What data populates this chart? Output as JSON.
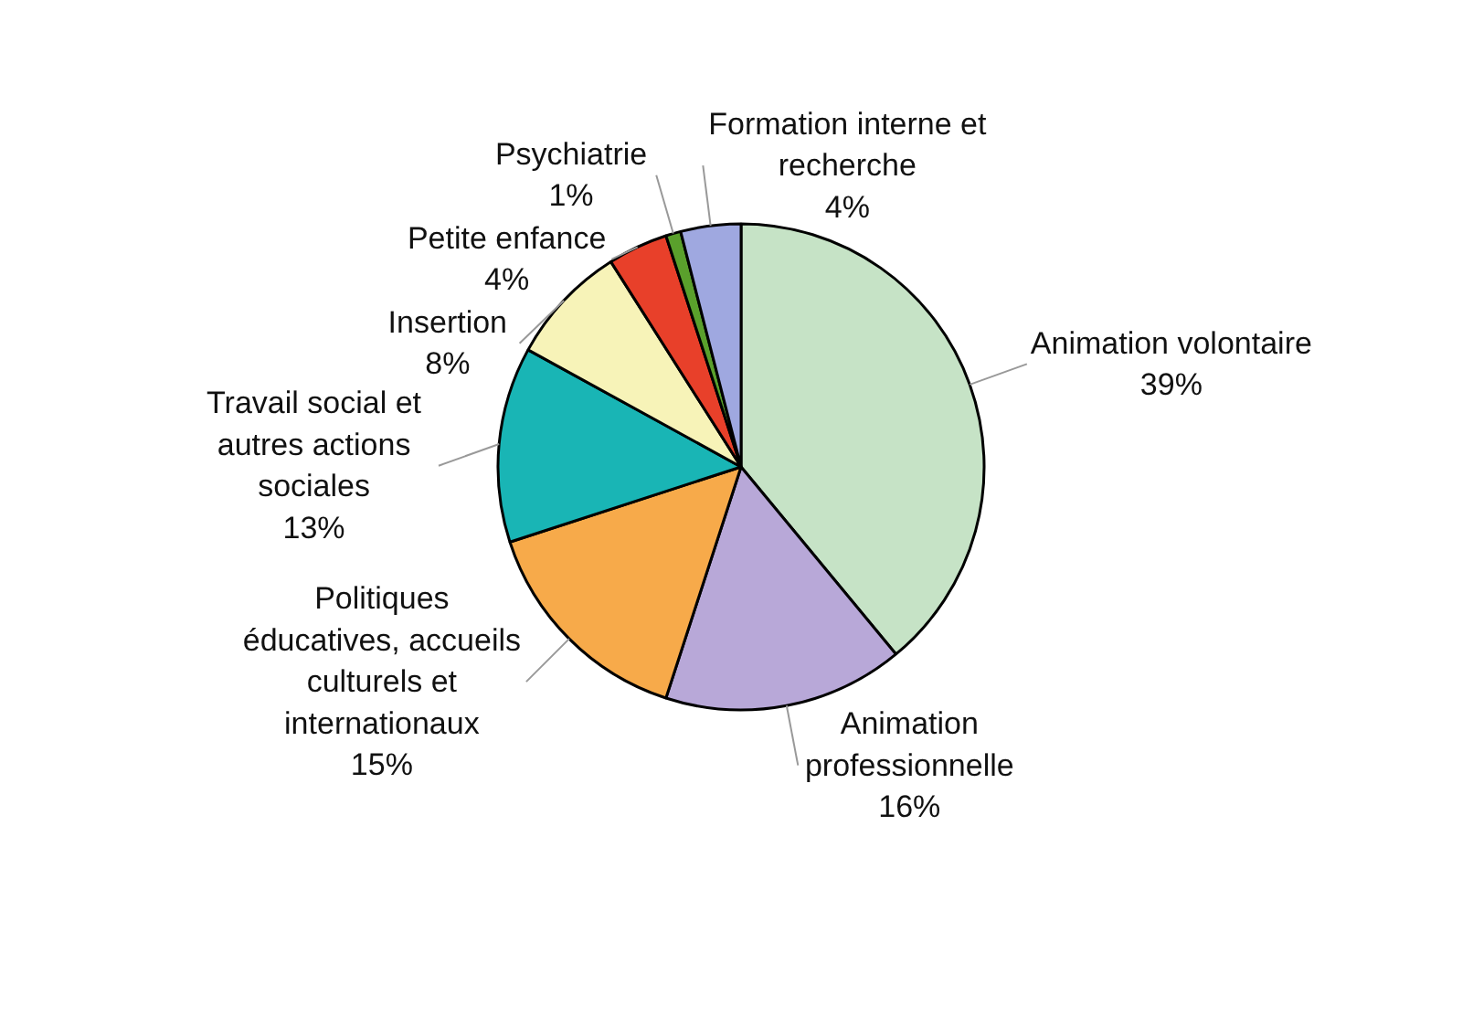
{
  "chart_data": {
    "type": "pie",
    "categories": [
      "Animation volontaire",
      "Animation\nprofessionnelle",
      "Politiques\néducatives, accueils\nculturels et\ninternationaux",
      "Travail social et\nautres actions\nsociales",
      "Insertion",
      "Petite enfance",
      "Psychiatrie",
      "Formation interne et\nrecherche"
    ],
    "values": [
      39,
      16,
      15,
      13,
      8,
      4,
      1,
      4
    ],
    "colors": [
      "#c6e3c6",
      "#b8a8d8",
      "#f7aa4a",
      "#19b5b5",
      "#f7f3b8",
      "#e8402a",
      "#5aa02c",
      "#9fa8e0"
    ],
    "value_labels": [
      "39%",
      "16%",
      "15%",
      "13%",
      "8%",
      "4%",
      "1%",
      "4%"
    ]
  }
}
